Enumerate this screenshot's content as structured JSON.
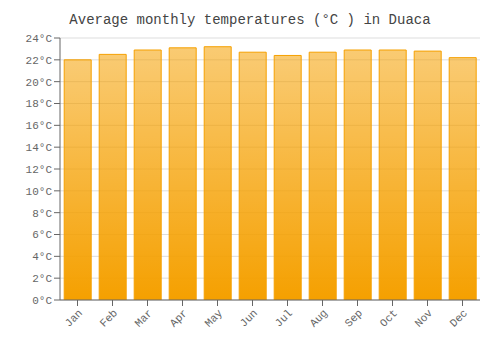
{
  "chart_data": {
    "type": "bar",
    "title": "Average monthly temperatures (°C ) in Duaca",
    "categories": [
      "Jan",
      "Feb",
      "Mar",
      "Apr",
      "May",
      "Jun",
      "Jul",
      "Aug",
      "Sep",
      "Oct",
      "Nov",
      "Dec"
    ],
    "values": [
      22.0,
      22.5,
      22.9,
      23.1,
      23.2,
      22.7,
      22.4,
      22.7,
      22.9,
      22.9,
      22.8,
      22.2
    ],
    "color": "#F5A000",
    "ylim": [
      0,
      24
    ],
    "yticks": [
      {
        "value": 0,
        "label": "0°C"
      },
      {
        "value": 2,
        "label": "2°C"
      },
      {
        "value": 4,
        "label": "4°C"
      },
      {
        "value": 6,
        "label": "6°C"
      },
      {
        "value": 8,
        "label": "8°C"
      },
      {
        "value": 10,
        "label": "10°C"
      },
      {
        "value": 12,
        "label": "12°C"
      },
      {
        "value": 14,
        "label": "14°C"
      },
      {
        "value": 16,
        "label": "16°C"
      },
      {
        "value": 18,
        "label": "18°C"
      },
      {
        "value": 20,
        "label": "20°C"
      },
      {
        "value": 22,
        "label": "22°C"
      },
      {
        "value": 24,
        "label": "24°C"
      }
    ],
    "grid": true
  }
}
